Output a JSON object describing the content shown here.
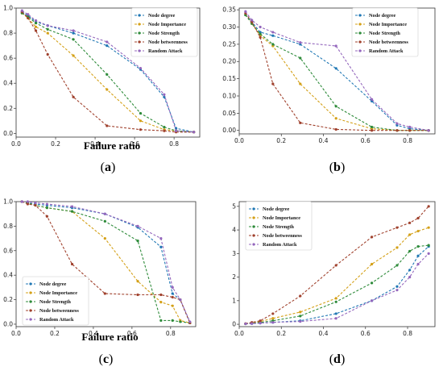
{
  "colors": {
    "Node degree": "#1f77b4",
    "Node Importance": "#d4a017",
    "Node Strength": "#2e8b3a",
    "Node betweenness": "#a0412d",
    "Random Attack": "#9467bd"
  },
  "chart_data": [
    {
      "id": "a",
      "type": "line",
      "panel_label": "a",
      "xlabel": "Failure ratio",
      "ylabel": "",
      "xlim": [
        0.0,
        0.93
      ],
      "ylim": [
        -0.03,
        1.0
      ],
      "xticks": [
        "0.0",
        "0.2",
        "0.4",
        "0.6",
        "0.8"
      ],
      "yticks": [
        "0.0",
        "0.2",
        "0.4",
        "0.6",
        "0.8",
        "1.0"
      ],
      "legend_position": "top-right",
      "x": [
        0.03,
        0.06,
        0.1,
        0.16,
        0.29,
        0.46,
        0.63,
        0.75,
        0.81,
        0.9
      ],
      "series": [
        {
          "name": "Node degree",
          "values": [
            0.97,
            0.94,
            0.89,
            0.86,
            0.8,
            0.7,
            0.51,
            0.29,
            0.04,
            0.01
          ]
        },
        {
          "name": "Node Importance",
          "values": [
            0.96,
            0.92,
            0.85,
            0.8,
            0.62,
            0.35,
            0.1,
            0.03,
            0.02,
            0.01
          ]
        },
        {
          "name": "Node Strength",
          "values": [
            0.96,
            0.93,
            0.88,
            0.83,
            0.75,
            0.47,
            0.16,
            0.05,
            0.02,
            0.01
          ]
        },
        {
          "name": "Node betweenness",
          "values": [
            0.97,
            0.92,
            0.82,
            0.63,
            0.29,
            0.06,
            0.03,
            0.02,
            0.01,
            0.01
          ]
        },
        {
          "name": "Random Attack",
          "values": [
            0.98,
            0.95,
            0.9,
            0.86,
            0.82,
            0.73,
            0.52,
            0.31,
            0.02,
            0.01
          ]
        }
      ]
    },
    {
      "id": "b",
      "type": "line",
      "panel_label": "b",
      "xlabel": "",
      "ylabel": "",
      "xlim": [
        0.0,
        0.93
      ],
      "ylim": [
        -0.01,
        0.355
      ],
      "xticks": [
        "0.0",
        "0.2",
        "0.4",
        "0.6",
        "0.8"
      ],
      "yticks": [
        "0.00",
        "0.05",
        "0.10",
        "0.15",
        "0.20",
        "0.25",
        "0.30",
        "0.35"
      ],
      "legend_position": "top-right",
      "x": [
        0.03,
        0.06,
        0.1,
        0.16,
        0.29,
        0.46,
        0.63,
        0.75,
        0.81,
        0.9
      ],
      "series": [
        {
          "name": "Node degree",
          "values": [
            0.335,
            0.315,
            0.285,
            0.275,
            0.25,
            0.18,
            0.085,
            0.015,
            0.005,
            0.0
          ]
        },
        {
          "name": "Node Importance",
          "values": [
            0.335,
            0.31,
            0.275,
            0.245,
            0.135,
            0.035,
            0.005,
            0.0,
            0.0,
            0.0
          ]
        },
        {
          "name": "Node Strength",
          "values": [
            0.335,
            0.31,
            0.28,
            0.25,
            0.21,
            0.07,
            0.01,
            0.0,
            0.0,
            0.0
          ]
        },
        {
          "name": "Node betweenness",
          "values": [
            0.34,
            0.315,
            0.27,
            0.135,
            0.022,
            0.003,
            0.0,
            0.0,
            0.0,
            0.0
          ]
        },
        {
          "name": "Random Attack",
          "values": [
            0.345,
            0.32,
            0.3,
            0.285,
            0.255,
            0.245,
            0.09,
            0.02,
            0.01,
            0.0
          ]
        }
      ]
    },
    {
      "id": "c",
      "type": "line",
      "panel_label": "c",
      "xlabel": "Failure ratio",
      "ylabel": "",
      "xlim": [
        0.0,
        0.93
      ],
      "ylim": [
        -0.02,
        1.0
      ],
      "xticks": [
        "0.0",
        "0.2",
        "0.4",
        "0.6",
        "0.8"
      ],
      "yticks": [
        "0.0",
        "0.2",
        "0.4",
        "0.6",
        "0.8",
        "1.0"
      ],
      "legend_position": "bottom-left",
      "x": [
        0.03,
        0.06,
        0.1,
        0.16,
        0.29,
        0.46,
        0.63,
        0.75,
        0.81,
        0.85,
        0.9
      ],
      "series": [
        {
          "name": "Node degree",
          "values": [
            1.0,
            0.99,
            0.98,
            0.97,
            0.95,
            0.9,
            0.79,
            0.63,
            0.25,
            0.2,
            0.01
          ]
        },
        {
          "name": "Node Importance",
          "values": [
            1.0,
            0.99,
            0.97,
            0.95,
            0.92,
            0.7,
            0.35,
            0.18,
            0.15,
            0.03,
            0.01
          ]
        },
        {
          "name": "Node Strength",
          "values": [
            1.0,
            0.99,
            0.97,
            0.95,
            0.92,
            0.84,
            0.68,
            0.03,
            0.03,
            0.02,
            0.01
          ]
        },
        {
          "name": "Node betweenness",
          "values": [
            1.0,
            0.98,
            0.97,
            0.88,
            0.49,
            0.25,
            0.24,
            0.24,
            0.22,
            0.2,
            0.01
          ]
        },
        {
          "name": "Random Attack",
          "values": [
            1.0,
            1.0,
            0.99,
            0.98,
            0.96,
            0.9,
            0.8,
            0.7,
            0.3,
            0.2,
            0.02
          ]
        }
      ]
    },
    {
      "id": "d",
      "type": "line",
      "panel_label": "d",
      "xlabel": "",
      "ylabel": "",
      "xlim": [
        0.0,
        0.93
      ],
      "ylim": [
        -0.1,
        5.2
      ],
      "xticks": [
        "0.0",
        "0.2",
        "0.4",
        "0.6",
        "0.8"
      ],
      "yticks": [
        "0",
        "1",
        "2",
        "3",
        "4",
        "5"
      ],
      "legend_position": "top-left",
      "x": [
        0.03,
        0.06,
        0.1,
        0.16,
        0.29,
        0.46,
        0.63,
        0.75,
        0.81,
        0.85,
        0.9
      ],
      "series": [
        {
          "name": "Node degree",
          "values": [
            0.02,
            0.03,
            0.05,
            0.08,
            0.15,
            0.45,
            1.0,
            1.6,
            2.3,
            2.9,
            3.3
          ]
        },
        {
          "name": "Node Importance",
          "values": [
            0.02,
            0.06,
            0.12,
            0.25,
            0.52,
            1.1,
            2.55,
            3.25,
            3.8,
            3.95,
            4.1
          ]
        },
        {
          "name": "Node Strength",
          "values": [
            0.02,
            0.04,
            0.08,
            0.15,
            0.35,
            0.95,
            1.75,
            2.5,
            3.1,
            3.3,
            3.35
          ]
        },
        {
          "name": "Node betweenness",
          "values": [
            0.03,
            0.08,
            0.15,
            0.45,
            1.2,
            2.5,
            3.7,
            4.1,
            4.3,
            4.5,
            5.0
          ]
        },
        {
          "name": "Random Attack",
          "values": [
            0.02,
            0.03,
            0.05,
            0.08,
            0.12,
            0.25,
            1.0,
            1.45,
            2.0,
            2.55,
            3.0
          ]
        }
      ]
    }
  ]
}
